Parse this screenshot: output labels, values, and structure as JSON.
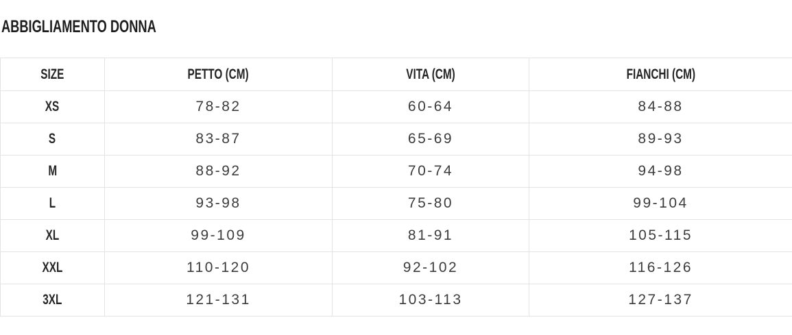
{
  "page": {
    "title": "ABBIGLIAMENTO DONNA"
  },
  "size_table": {
    "columns": [
      "SIZE",
      "PETTO (CM)",
      "VITA (CM)",
      "FIANCHI (CM)"
    ],
    "rows": [
      {
        "size": "XS",
        "petto": "78-82",
        "vita": "60-64",
        "fianchi": "84-88"
      },
      {
        "size": "S",
        "petto": "83-87",
        "vita": "65-69",
        "fianchi": "89-93"
      },
      {
        "size": "M",
        "petto": "88-92",
        "vita": "70-74",
        "fianchi": "94-98"
      },
      {
        "size": "L",
        "petto": "93-98",
        "vita": "75-80",
        "fianchi": "99-104"
      },
      {
        "size": "XL",
        "petto": "99-109",
        "vita": "81-91",
        "fianchi": "105-115"
      },
      {
        "size": "XXL",
        "petto": "110-120",
        "vita": "92-102",
        "fianchi": "116-126"
      },
      {
        "size": "3XL",
        "petto": "121-131",
        "vita": "103-113",
        "fianchi": "127-137"
      }
    ]
  },
  "chart_data": {
    "type": "table",
    "title": "ABBIGLIAMENTO DONNA",
    "columns": [
      "SIZE",
      "PETTO (CM)",
      "VITA (CM)",
      "FIANCHI (CM)"
    ],
    "rows": [
      [
        "XS",
        "78-82",
        "60-64",
        "84-88"
      ],
      [
        "S",
        "83-87",
        "65-69",
        "89-93"
      ],
      [
        "M",
        "88-92",
        "70-74",
        "94-98"
      ],
      [
        "L",
        "93-98",
        "75-80",
        "99-104"
      ],
      [
        "XL",
        "99-109",
        "81-91",
        "105-115"
      ],
      [
        "XXL",
        "110-120",
        "92-102",
        "116-126"
      ],
      [
        "3XL",
        "121-131",
        "103-113",
        "127-137"
      ]
    ]
  },
  "colors": {
    "background": "#ffffff",
    "title_text": "#1d1d1d",
    "header_text": "#232323",
    "cell_text": "#3c3c3c",
    "border": "#e3e3e3"
  }
}
